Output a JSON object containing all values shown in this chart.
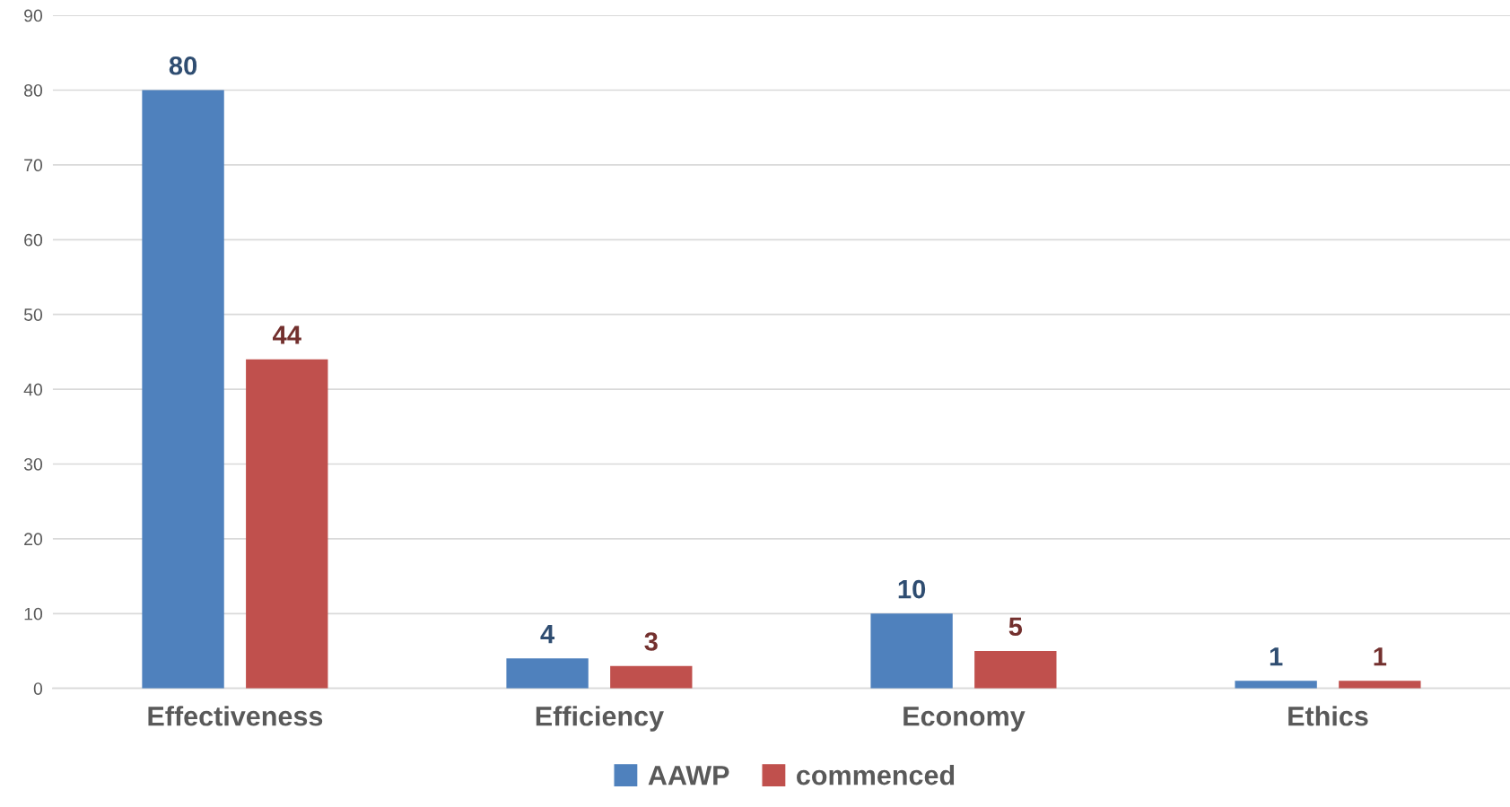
{
  "chart_data": {
    "type": "bar",
    "categories": [
      "Effectiveness",
      "Efficiency",
      "Economy",
      "Ethics"
    ],
    "series": [
      {
        "name": "AAWP",
        "color": "#4f81bd",
        "values": [
          80,
          4,
          10,
          1
        ]
      },
      {
        "name": "commenced",
        "color": "#c0504d",
        "values": [
          44,
          3,
          5,
          1
        ]
      }
    ],
    "ylim": [
      0,
      90
    ],
    "yticks": [
      0,
      10,
      20,
      30,
      40,
      50,
      60,
      70,
      80,
      90
    ],
    "grid": "y",
    "legend": "bottom",
    "data_labels": true
  }
}
